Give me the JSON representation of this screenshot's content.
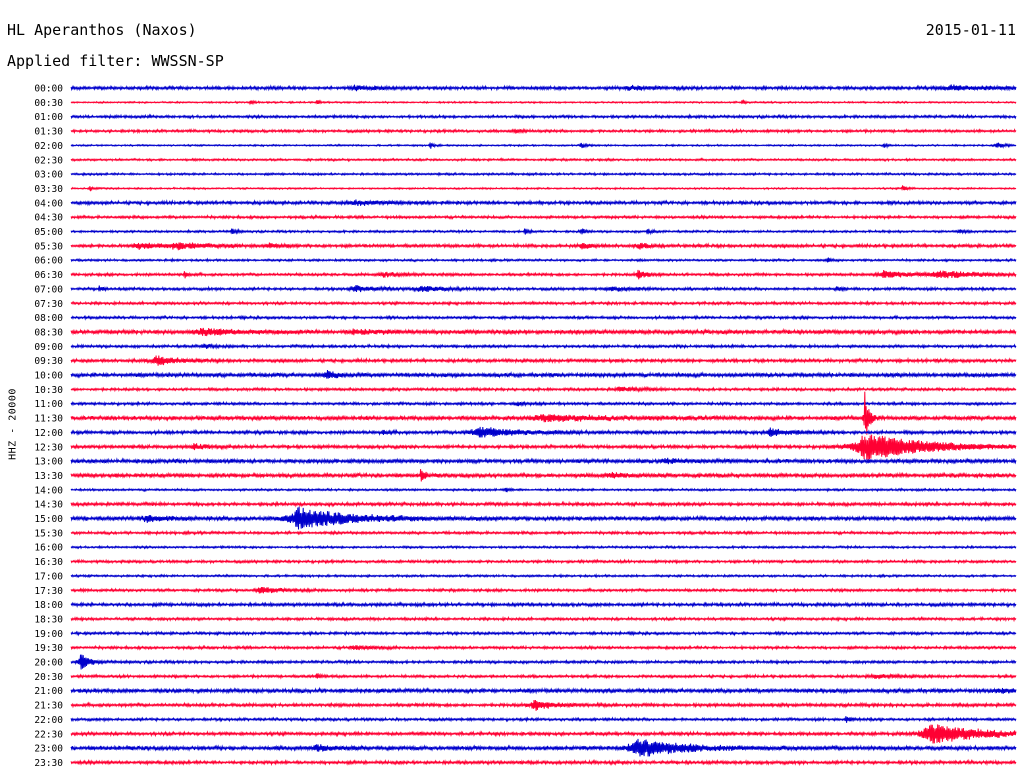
{
  "header": {
    "station": "HL Aperanthos (Naxos)",
    "date": "2015-01-11",
    "filter": "Applied filter: WWSSN-SP"
  },
  "chart_data": {
    "type": "line",
    "title": "HL Aperanthos (Naxos)",
    "ylabel": "HHZ - 20000",
    "xlabel": "",
    "grid": false,
    "trace_colors": [
      "#0000cc",
      "#ff0033"
    ],
    "rows": [
      {
        "label": "00:00",
        "noise": 1.2,
        "events": [
          {
            "x": 0.3,
            "amp": 2,
            "w": 0.02
          },
          {
            "x": 0.59,
            "amp": 2,
            "w": 0.02
          },
          {
            "x": 0.93,
            "amp": 2,
            "w": 0.04
          }
        ]
      },
      {
        "label": "00:30",
        "noise": 0.6,
        "events": [
          {
            "x": 0.19,
            "amp": 3,
            "w": 0.003
          },
          {
            "x": 0.26,
            "amp": 3,
            "w": 0.003
          },
          {
            "x": 0.71,
            "amp": 3,
            "w": 0.003
          }
        ]
      },
      {
        "label": "01:00",
        "noise": 1.0,
        "events": []
      },
      {
        "label": "01:30",
        "noise": 1.0,
        "events": [
          {
            "x": 0.47,
            "amp": 3,
            "w": 0.004
          }
        ]
      },
      {
        "label": "02:00",
        "noise": 0.6,
        "events": [
          {
            "x": 0.38,
            "amp": 3,
            "w": 0.004
          },
          {
            "x": 0.54,
            "amp": 3,
            "w": 0.004
          },
          {
            "x": 0.86,
            "amp": 2,
            "w": 0.004
          },
          {
            "x": 0.98,
            "amp": 3,
            "w": 0.006
          }
        ]
      },
      {
        "label": "02:30",
        "noise": 0.8,
        "events": []
      },
      {
        "label": "03:00",
        "noise": 0.8,
        "events": []
      },
      {
        "label": "03:30",
        "noise": 0.6,
        "events": [
          {
            "x": 0.02,
            "amp": 3,
            "w": 0.003
          },
          {
            "x": 0.88,
            "amp": 3,
            "w": 0.004
          }
        ]
      },
      {
        "label": "04:00",
        "noise": 1.2,
        "events": [
          {
            "x": 0.3,
            "amp": 2,
            "w": 0.03
          }
        ]
      },
      {
        "label": "04:30",
        "noise": 1.0,
        "events": []
      },
      {
        "label": "05:00",
        "noise": 0.8,
        "events": [
          {
            "x": 0.17,
            "amp": 3,
            "w": 0.004
          },
          {
            "x": 0.48,
            "amp": 3,
            "w": 0.004
          },
          {
            "x": 0.54,
            "amp": 3,
            "w": 0.004
          },
          {
            "x": 0.61,
            "amp": 3,
            "w": 0.004
          },
          {
            "x": 0.94,
            "amp": 3,
            "w": 0.004
          }
        ]
      },
      {
        "label": "05:30",
        "noise": 1.2,
        "events": [
          {
            "x": 0.07,
            "amp": 3,
            "w": 0.02
          },
          {
            "x": 0.11,
            "amp": 3,
            "w": 0.03
          },
          {
            "x": 0.21,
            "amp": 2,
            "w": 0.01
          },
          {
            "x": 0.54,
            "amp": 3,
            "w": 0.01
          },
          {
            "x": 0.6,
            "amp": 3,
            "w": 0.01
          }
        ]
      },
      {
        "label": "06:00",
        "noise": 0.8,
        "events": [
          {
            "x": 0.8,
            "amp": 3,
            "w": 0.003
          }
        ]
      },
      {
        "label": "06:30",
        "noise": 1.0,
        "events": [
          {
            "x": 0.12,
            "amp": 3,
            "w": 0.004
          },
          {
            "x": 0.33,
            "amp": 2,
            "w": 0.02
          },
          {
            "x": 0.6,
            "amp": 4,
            "w": 0.01
          },
          {
            "x": 0.86,
            "amp": 3,
            "w": 0.03
          },
          {
            "x": 0.92,
            "amp": 3,
            "w": 0.04
          }
        ]
      },
      {
        "label": "07:00",
        "noise": 1.0,
        "events": [
          {
            "x": 0.03,
            "amp": 3,
            "w": 0.003
          },
          {
            "x": 0.3,
            "amp": 3,
            "w": 0.02
          },
          {
            "x": 0.37,
            "amp": 3,
            "w": 0.02
          },
          {
            "x": 0.57,
            "amp": 2,
            "w": 0.02
          },
          {
            "x": 0.81,
            "amp": 3,
            "w": 0.004
          }
        ]
      },
      {
        "label": "07:30",
        "noise": 1.0,
        "events": []
      },
      {
        "label": "08:00",
        "noise": 1.0,
        "events": []
      },
      {
        "label": "08:30",
        "noise": 1.5,
        "events": [
          {
            "x": 0.14,
            "amp": 3,
            "w": 0.04
          },
          {
            "x": 0.3,
            "amp": 2,
            "w": 0.03
          }
        ]
      },
      {
        "label": "09:00",
        "noise": 1.0,
        "events": [
          {
            "x": 0.14,
            "amp": 2,
            "w": 0.01
          }
        ]
      },
      {
        "label": "09:30",
        "noise": 1.2,
        "events": [
          {
            "x": 0.09,
            "amp": 5,
            "w": 0.02
          }
        ]
      },
      {
        "label": "10:00",
        "noise": 1.5,
        "events": [
          {
            "x": 0.27,
            "amp": 4,
            "w": 0.01
          }
        ]
      },
      {
        "label": "10:30",
        "noise": 1.0,
        "events": [
          {
            "x": 0.58,
            "amp": 2,
            "w": 0.02
          }
        ]
      },
      {
        "label": "11:00",
        "noise": 1.0,
        "events": [
          {
            "x": 0.47,
            "amp": 2,
            "w": 0.01
          }
        ]
      },
      {
        "label": "11:30",
        "noise": 1.5,
        "events": [
          {
            "x": 0.5,
            "amp": 3,
            "w": 0.06
          },
          {
            "x": 0.84,
            "amp": 26,
            "w": 0.004
          }
        ]
      },
      {
        "label": "12:00",
        "noise": 1.2,
        "events": [
          {
            "x": 0.33,
            "amp": 3,
            "w": 0.004
          },
          {
            "x": 0.43,
            "amp": 5,
            "w": 0.04
          },
          {
            "x": 0.74,
            "amp": 4,
            "w": 0.02
          }
        ]
      },
      {
        "label": "12:30",
        "noise": 1.2,
        "events": [
          {
            "x": 0.13,
            "amp": 3,
            "w": 0.01
          },
          {
            "x": 0.84,
            "amp": 14,
            "w": 0.06
          }
        ]
      },
      {
        "label": "13:00",
        "noise": 1.5,
        "events": [
          {
            "x": 0.63,
            "amp": 2,
            "w": 0.02
          }
        ]
      },
      {
        "label": "13:30",
        "noise": 1.5,
        "events": [
          {
            "x": 0.37,
            "amp": 6,
            "w": 0.004
          },
          {
            "x": 0.57,
            "amp": 2,
            "w": 0.02
          }
        ]
      },
      {
        "label": "14:00",
        "noise": 0.8,
        "events": [
          {
            "x": 0.46,
            "amp": 2,
            "w": 0.004
          }
        ]
      },
      {
        "label": "14:30",
        "noise": 1.2,
        "events": []
      },
      {
        "label": "15:00",
        "noise": 1.5,
        "events": [
          {
            "x": 0.08,
            "amp": 3,
            "w": 0.02
          },
          {
            "x": 0.24,
            "amp": 11,
            "w": 0.05
          }
        ]
      },
      {
        "label": "15:30",
        "noise": 1.0,
        "events": []
      },
      {
        "label": "16:00",
        "noise": 0.8,
        "events": []
      },
      {
        "label": "16:30",
        "noise": 1.0,
        "events": []
      },
      {
        "label": "17:00",
        "noise": 0.8,
        "events": []
      },
      {
        "label": "17:30",
        "noise": 1.0,
        "events": [
          {
            "x": 0.2,
            "amp": 3,
            "w": 0.02
          }
        ]
      },
      {
        "label": "18:00",
        "noise": 1.2,
        "events": []
      },
      {
        "label": "18:30",
        "noise": 1.0,
        "events": []
      },
      {
        "label": "19:00",
        "noise": 1.0,
        "events": []
      },
      {
        "label": "19:30",
        "noise": 1.0,
        "events": [
          {
            "x": 0.3,
            "amp": 2,
            "w": 0.02
          }
        ]
      },
      {
        "label": "20:00",
        "noise": 1.0,
        "events": [
          {
            "x": 0.01,
            "amp": 9,
            "w": 0.008
          }
        ]
      },
      {
        "label": "20:30",
        "noise": 1.0,
        "events": [
          {
            "x": 0.26,
            "amp": 3,
            "w": 0.004
          },
          {
            "x": 0.85,
            "amp": 2,
            "w": 0.02
          }
        ]
      },
      {
        "label": "21:00",
        "noise": 1.5,
        "events": [
          {
            "x": 0.98,
            "amp": 2,
            "w": 0.02
          }
        ]
      },
      {
        "label": "21:30",
        "noise": 1.2,
        "events": [
          {
            "x": 0.49,
            "amp": 5,
            "w": 0.02
          }
        ]
      },
      {
        "label": "22:00",
        "noise": 1.0,
        "events": [
          {
            "x": 0.82,
            "amp": 3,
            "w": 0.004
          }
        ]
      },
      {
        "label": "22:30",
        "noise": 1.2,
        "events": [
          {
            "x": 0.91,
            "amp": 10,
            "w": 0.05
          }
        ]
      },
      {
        "label": "23:00",
        "noise": 1.5,
        "events": [
          {
            "x": 0.26,
            "amp": 3,
            "w": 0.02
          },
          {
            "x": 0.6,
            "amp": 8,
            "w": 0.05
          }
        ]
      },
      {
        "label": "23:30",
        "noise": 1.2,
        "events": []
      }
    ]
  }
}
